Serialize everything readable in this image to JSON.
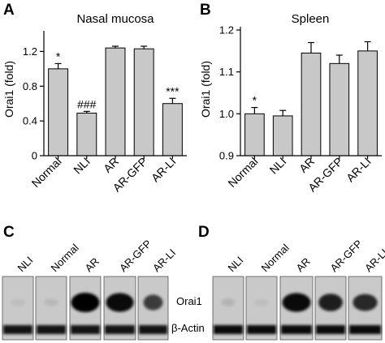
{
  "panels": {
    "A": "A",
    "B": "B",
    "C": "C",
    "D": "D"
  },
  "chart_data": [
    {
      "id": "A",
      "type": "bar",
      "title": "Nasal mucosa",
      "ylabel": "Orai1 (fold)",
      "xlabel": "",
      "categories": [
        "Normal",
        "NLI",
        "AR",
        "AR-GFP",
        "AR-LI"
      ],
      "values": [
        1.0,
        0.49,
        1.24,
        1.23,
        0.6
      ],
      "errors": [
        0.06,
        0.02,
        0.02,
        0.03,
        0.06
      ],
      "annotations": [
        "*",
        "###",
        "",
        "",
        "***"
      ],
      "ylim": [
        0,
        1.4
      ],
      "yticks": [
        0,
        0.4,
        0.8,
        1.2
      ],
      "ytick_labels": [
        "0",
        "0.4",
        "0.8",
        "1.2"
      ],
      "bar_color": "#c8c8c8",
      "grid": false,
      "legend": "none"
    },
    {
      "id": "B",
      "type": "bar",
      "title": "Spleen",
      "ylabel": "Orai1 (fold)",
      "xlabel": "",
      "categories": [
        "Normal",
        "NLI",
        "AR",
        "AR-GFP",
        "AR-LI"
      ],
      "values": [
        1.0,
        0.995,
        1.145,
        1.12,
        1.15
      ],
      "errors": [
        0.015,
        0.013,
        0.025,
        0.02,
        0.022
      ],
      "annotations": [
        "*",
        "",
        "",
        "",
        ""
      ],
      "ylim": [
        0.9,
        1.2
      ],
      "yticks": [
        0.9,
        1.0,
        1.1,
        1.2
      ],
      "ytick_labels": [
        "0.9",
        "1.0",
        "1.1",
        "1.2"
      ],
      "bar_color": "#c8c8c8",
      "grid": false,
      "legend": "none"
    }
  ],
  "blots": {
    "C": {
      "lanes": [
        "NLI",
        "Normal",
        "AR",
        "AR-GFP",
        "AR-LI"
      ],
      "orai1_intensity": [
        0.05,
        0.08,
        1.0,
        0.95,
        0.7
      ],
      "actin_intensity": [
        0.9,
        0.9,
        0.9,
        0.9,
        0.9
      ]
    },
    "D": {
      "lanes": [
        "NLI",
        "Normal",
        "AR",
        "AR-GFP",
        "AR-LI"
      ],
      "orai1_intensity": [
        0.1,
        0.05,
        0.95,
        0.85,
        0.8
      ],
      "actin_intensity": [
        0.95,
        0.95,
        0.95,
        0.95,
        0.95
      ]
    },
    "band_labels": [
      "Orai1",
      "β-Actin"
    ]
  }
}
